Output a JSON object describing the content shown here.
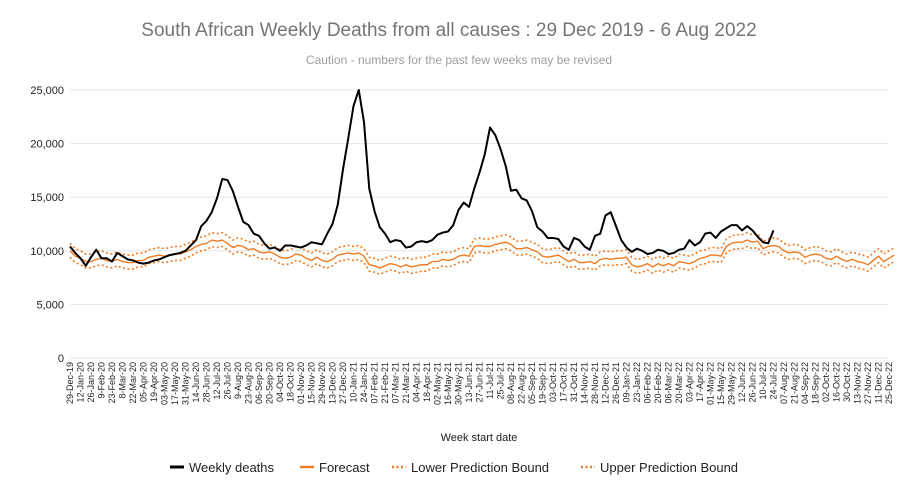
{
  "chart_data": {
    "type": "line",
    "title": "South African Weekly Deaths from all causes : 29 Dec 2019 - 6 Aug 2022",
    "subtitle": "Caution - numbers for the past few weeks may be revised",
    "xlabel": "Week start date",
    "ylabel": "",
    "ylim": [
      0,
      25000
    ],
    "yticks": [
      0,
      5000,
      10000,
      15000,
      20000,
      25000
    ],
    "ytick_labels": [
      "0",
      "5,000",
      "10,000",
      "15,000",
      "20,000",
      "25,000"
    ],
    "x_tick_labels": [
      "29-Dec-19",
      "12-Jan-20",
      "26-Jan-20",
      "9-Feb-20",
      "23-Feb-20",
      "8-Mar-20",
      "22-Mar-20",
      "05-Apr-20",
      "19-Apr-20",
      "03-May-20",
      "17-May-20",
      "31-May-20",
      "14-Jun-20",
      "28-Jun-20",
      "12-Jul-20",
      "26-Jul-20",
      "9-Aug-20",
      "23-Aug-20",
      "06-Sep-20",
      "20-Sep-20",
      "04-Oct-20",
      "18-Oct-20",
      "01-Nov-20",
      "15-Nov-20",
      "29-Nov-20",
      "13-Dec-20",
      "27-Dec-20",
      "10-Jan-21",
      "24-Jan-21",
      "07-Feb-21",
      "21-Feb-21",
      "07-Mar-21",
      "21-Mar-21",
      "04-Apr-21",
      "18-Apr-21",
      "02-May-21",
      "16-May-21",
      "30-May-21",
      "13-Jun-21",
      "27-Jun-21",
      "11-Jul-21",
      "25-Jul-21",
      "08-Aug-21",
      "22-Aug-21",
      "05-Sep-21",
      "19-Sep-21",
      "03-Oct-21",
      "17-Oct-21",
      "31-Oct-21",
      "14-Nov-21",
      "28-Nov-21",
      "12-Dec-21",
      "26-Dec-21",
      "09-Jan-22",
      "23-Jan-22",
      "06-Feb-22",
      "20-Feb-22",
      "06-Mar-22",
      "20-Mar-22",
      "03-Apr-22",
      "17-Apr-22",
      "01-May-22",
      "15-May-22",
      "29-May-22",
      "12-Jun-22",
      "26-Jun-22",
      "10-Jul-22",
      "24-Jul-22",
      "07-Aug-22",
      "21-Aug-22",
      "04-Sep-22",
      "18-Sep-22",
      "02-Oct-22",
      "16-Oct-22",
      "30-Oct-22",
      "13-Nov-22",
      "27-Nov-22",
      "11-Dec-22",
      "25-Dec-22"
    ],
    "legend": [
      "Weekly deaths",
      "Forecast",
      "Lower Prediction Bound",
      "Upper Prediction Bound"
    ],
    "legend_position": "bottom",
    "colors": {
      "actual": "#000000",
      "forecast": "#f07a20",
      "bounds": "#f07a20",
      "grid": "#e6e6e6"
    },
    "series": [
      {
        "name": "Weekly deaths",
        "week_index_start": 0,
        "values": [
          10400,
          9800,
          9300,
          8600,
          9400,
          10100,
          9300,
          9300,
          9000,
          9800,
          9500,
          9200,
          9100,
          8900,
          8800,
          8900,
          9100,
          9200,
          9400,
          9600,
          9700,
          9800,
          10000,
          10500,
          11000,
          12300,
          12800,
          13600,
          14900,
          16700,
          16600,
          15600,
          14100,
          12700,
          12400,
          11600,
          11400,
          10700,
          10200,
          10300,
          10000,
          10500,
          10500,
          10400,
          10300,
          10500,
          10800,
          10700,
          10600,
          11600,
          12500,
          14300,
          17600,
          20500,
          23500,
          25000,
          22000,
          15800,
          13700,
          12200,
          11600,
          10800,
          11000,
          10900,
          10300,
          10400,
          10800,
          10900,
          10800,
          11000,
          11500,
          11700,
          11800,
          12400,
          13800,
          14500,
          14100,
          15800,
          17300,
          19000,
          21500,
          20800,
          19500,
          17900,
          15600,
          15700,
          14900,
          14700,
          13700,
          12200,
          11800,
          11200,
          11200,
          11100,
          10400,
          10100,
          11200,
          11000,
          10400,
          10100,
          11400,
          11600,
          13300,
          13600,
          12300,
          11000,
          10300,
          9900,
          10200,
          10000,
          9700,
          9800,
          10100,
          10000,
          9700,
          9800,
          10100,
          10200,
          11000,
          10500,
          10800,
          11600,
          11700,
          11200,
          11800,
          12100,
          12400,
          12400,
          11900,
          12300,
          11900,
          11300,
          10800,
          10700,
          11900
        ]
      },
      {
        "name": "Forecast",
        "values": [
          10000,
          9500,
          9300,
          9000,
          9000,
          9200,
          9300,
          9100,
          9000,
          9200,
          9000,
          8900,
          8900,
          9100,
          9100,
          9400,
          9500,
          9600,
          9500,
          9600,
          9700,
          9700,
          9900,
          10100,
          10400,
          10600,
          10700,
          11000,
          10900,
          11000,
          10700,
          10300,
          10500,
          10400,
          10100,
          10200,
          9900,
          9800,
          9900,
          9700,
          9400,
          9300,
          9400,
          9700,
          9600,
          9300,
          9100,
          9400,
          9100,
          9000,
          9200,
          9600,
          9700,
          9800,
          9700,
          9800,
          9500,
          8700,
          8600,
          8400,
          8600,
          8800,
          8700,
          8500,
          8700,
          8500,
          8600,
          8700,
          8700,
          9000,
          9000,
          9200,
          9100,
          9200,
          9500,
          9600,
          9500,
          10400,
          10500,
          10400,
          10400,
          10600,
          10700,
          10800,
          10600,
          10200,
          10200,
          10300,
          10100,
          9900,
          9500,
          9400,
          9500,
          9600,
          9300,
          9000,
          9200,
          8900,
          8900,
          9000,
          8800,
          9200,
          9300,
          9200,
          9300,
          9300,
          9400,
          8700,
          8500,
          8600,
          8800,
          8500,
          8800,
          8600,
          8800,
          8600,
          9000,
          8900,
          8800,
          9000,
          9300,
          9400,
          9600,
          9600,
          9500,
          10400,
          10700,
          10800,
          10800,
          11000,
          10800,
          10900,
          10200,
          10400,
          10500,
          10400,
          10000,
          9800,
          9900,
          9800,
          9400,
          9600,
          9700,
          9600,
          9300,
          9200,
          9500,
          9200,
          9000,
          9200,
          9000,
          8900,
          8700,
          9100,
          9500,
          9000,
          9300,
          9600
        ]
      },
      {
        "name": "Lower Prediction Bound",
        "values": [
          9400,
          8900,
          8700,
          8400,
          8400,
          8600,
          8700,
          8500,
          8400,
          8600,
          8400,
          8300,
          8300,
          8500,
          8500,
          8800,
          8900,
          9000,
          8900,
          9000,
          9100,
          9100,
          9300,
          9500,
          9800,
          10000,
          10100,
          10400,
          10300,
          10400,
          10100,
          9700,
          9900,
          9800,
          9500,
          9600,
          9300,
          9200,
          9300,
          9100,
          8800,
          8700,
          8800,
          9100,
          9000,
          8700,
          8500,
          8800,
          8500,
          8400,
          8600,
          9000,
          9100,
          9200,
          9100,
          9200,
          8900,
          8100,
          8000,
          7800,
          8000,
          8200,
          8100,
          7900,
          8100,
          7900,
          8000,
          8100,
          8100,
          8400,
          8400,
          8600,
          8500,
          8600,
          8900,
          9000,
          8900,
          9800,
          9900,
          9800,
          9800,
          10000,
          10100,
          10200,
          10000,
          9600,
          9600,
          9700,
          9500,
          9300,
          8900,
          8800,
          8900,
          9000,
          8700,
          8400,
          8600,
          8300,
          8300,
          8400,
          8200,
          8600,
          8700,
          8600,
          8700,
          8700,
          8800,
          8100,
          7900,
          8000,
          8200,
          7900,
          8200,
          8000,
          8200,
          8000,
          8400,
          8300,
          8200,
          8400,
          8700,
          8800,
          9000,
          9000,
          8900,
          9800,
          10100,
          10200,
          10200,
          10400,
          10200,
          10300,
          9600,
          9800,
          9900,
          9800,
          9400,
          9200,
          9300,
          9200,
          8800,
          9000,
          9100,
          9000,
          8700,
          8600,
          8900,
          8600,
          8400,
          8600,
          8400,
          8300,
          8100,
          8500,
          8900,
          8400,
          8700,
          9000
        ]
      },
      {
        "name": "Upper Prediction Bound",
        "values": [
          10700,
          10200,
          10000,
          9700,
          9700,
          9900,
          10000,
          9800,
          9700,
          9900,
          9700,
          9600,
          9600,
          9800,
          9800,
          10100,
          10200,
          10300,
          10200,
          10300,
          10400,
          10400,
          10600,
          10800,
          11100,
          11300,
          11400,
          11700,
          11600,
          11700,
          11400,
          11000,
          11200,
          11100,
          10800,
          10900,
          10600,
          10500,
          10600,
          10400,
          10100,
          10000,
          10100,
          10400,
          10300,
          10000,
          9800,
          10100,
          9800,
          9700,
          9900,
          10300,
          10400,
          10500,
          10400,
          10500,
          10200,
          9400,
          9300,
          9100,
          9300,
          9500,
          9400,
          9200,
          9400,
          9200,
          9300,
          9400,
          9400,
          9700,
          9700,
          9900,
          9800,
          9900,
          10200,
          10300,
          10200,
          11100,
          11200,
          11100,
          11100,
          11300,
          11400,
          11500,
          11300,
          10900,
          10900,
          11000,
          10800,
          10600,
          10200,
          10100,
          10200,
          10300,
          10000,
          9700,
          9900,
          9600,
          9600,
          9700,
          9500,
          9900,
          10000,
          9900,
          10000,
          10000,
          10100,
          9400,
          9200,
          9300,
          9500,
          9200,
          9500,
          9300,
          9500,
          9300,
          9700,
          9600,
          9500,
          9700,
          10000,
          10100,
          10300,
          10300,
          10200,
          11100,
          11400,
          11500,
          11500,
          11700,
          11500,
          11600,
          10900,
          11100,
          11200,
          11100,
          10700,
          10500,
          10600,
          10500,
          10100,
          10300,
          10400,
          10300,
          10000,
          9900,
          10200,
          9900,
          9700,
          9900,
          9700,
          9600,
          9400,
          9800,
          10200,
          9700,
          10000,
          10300
        ]
      }
    ]
  }
}
